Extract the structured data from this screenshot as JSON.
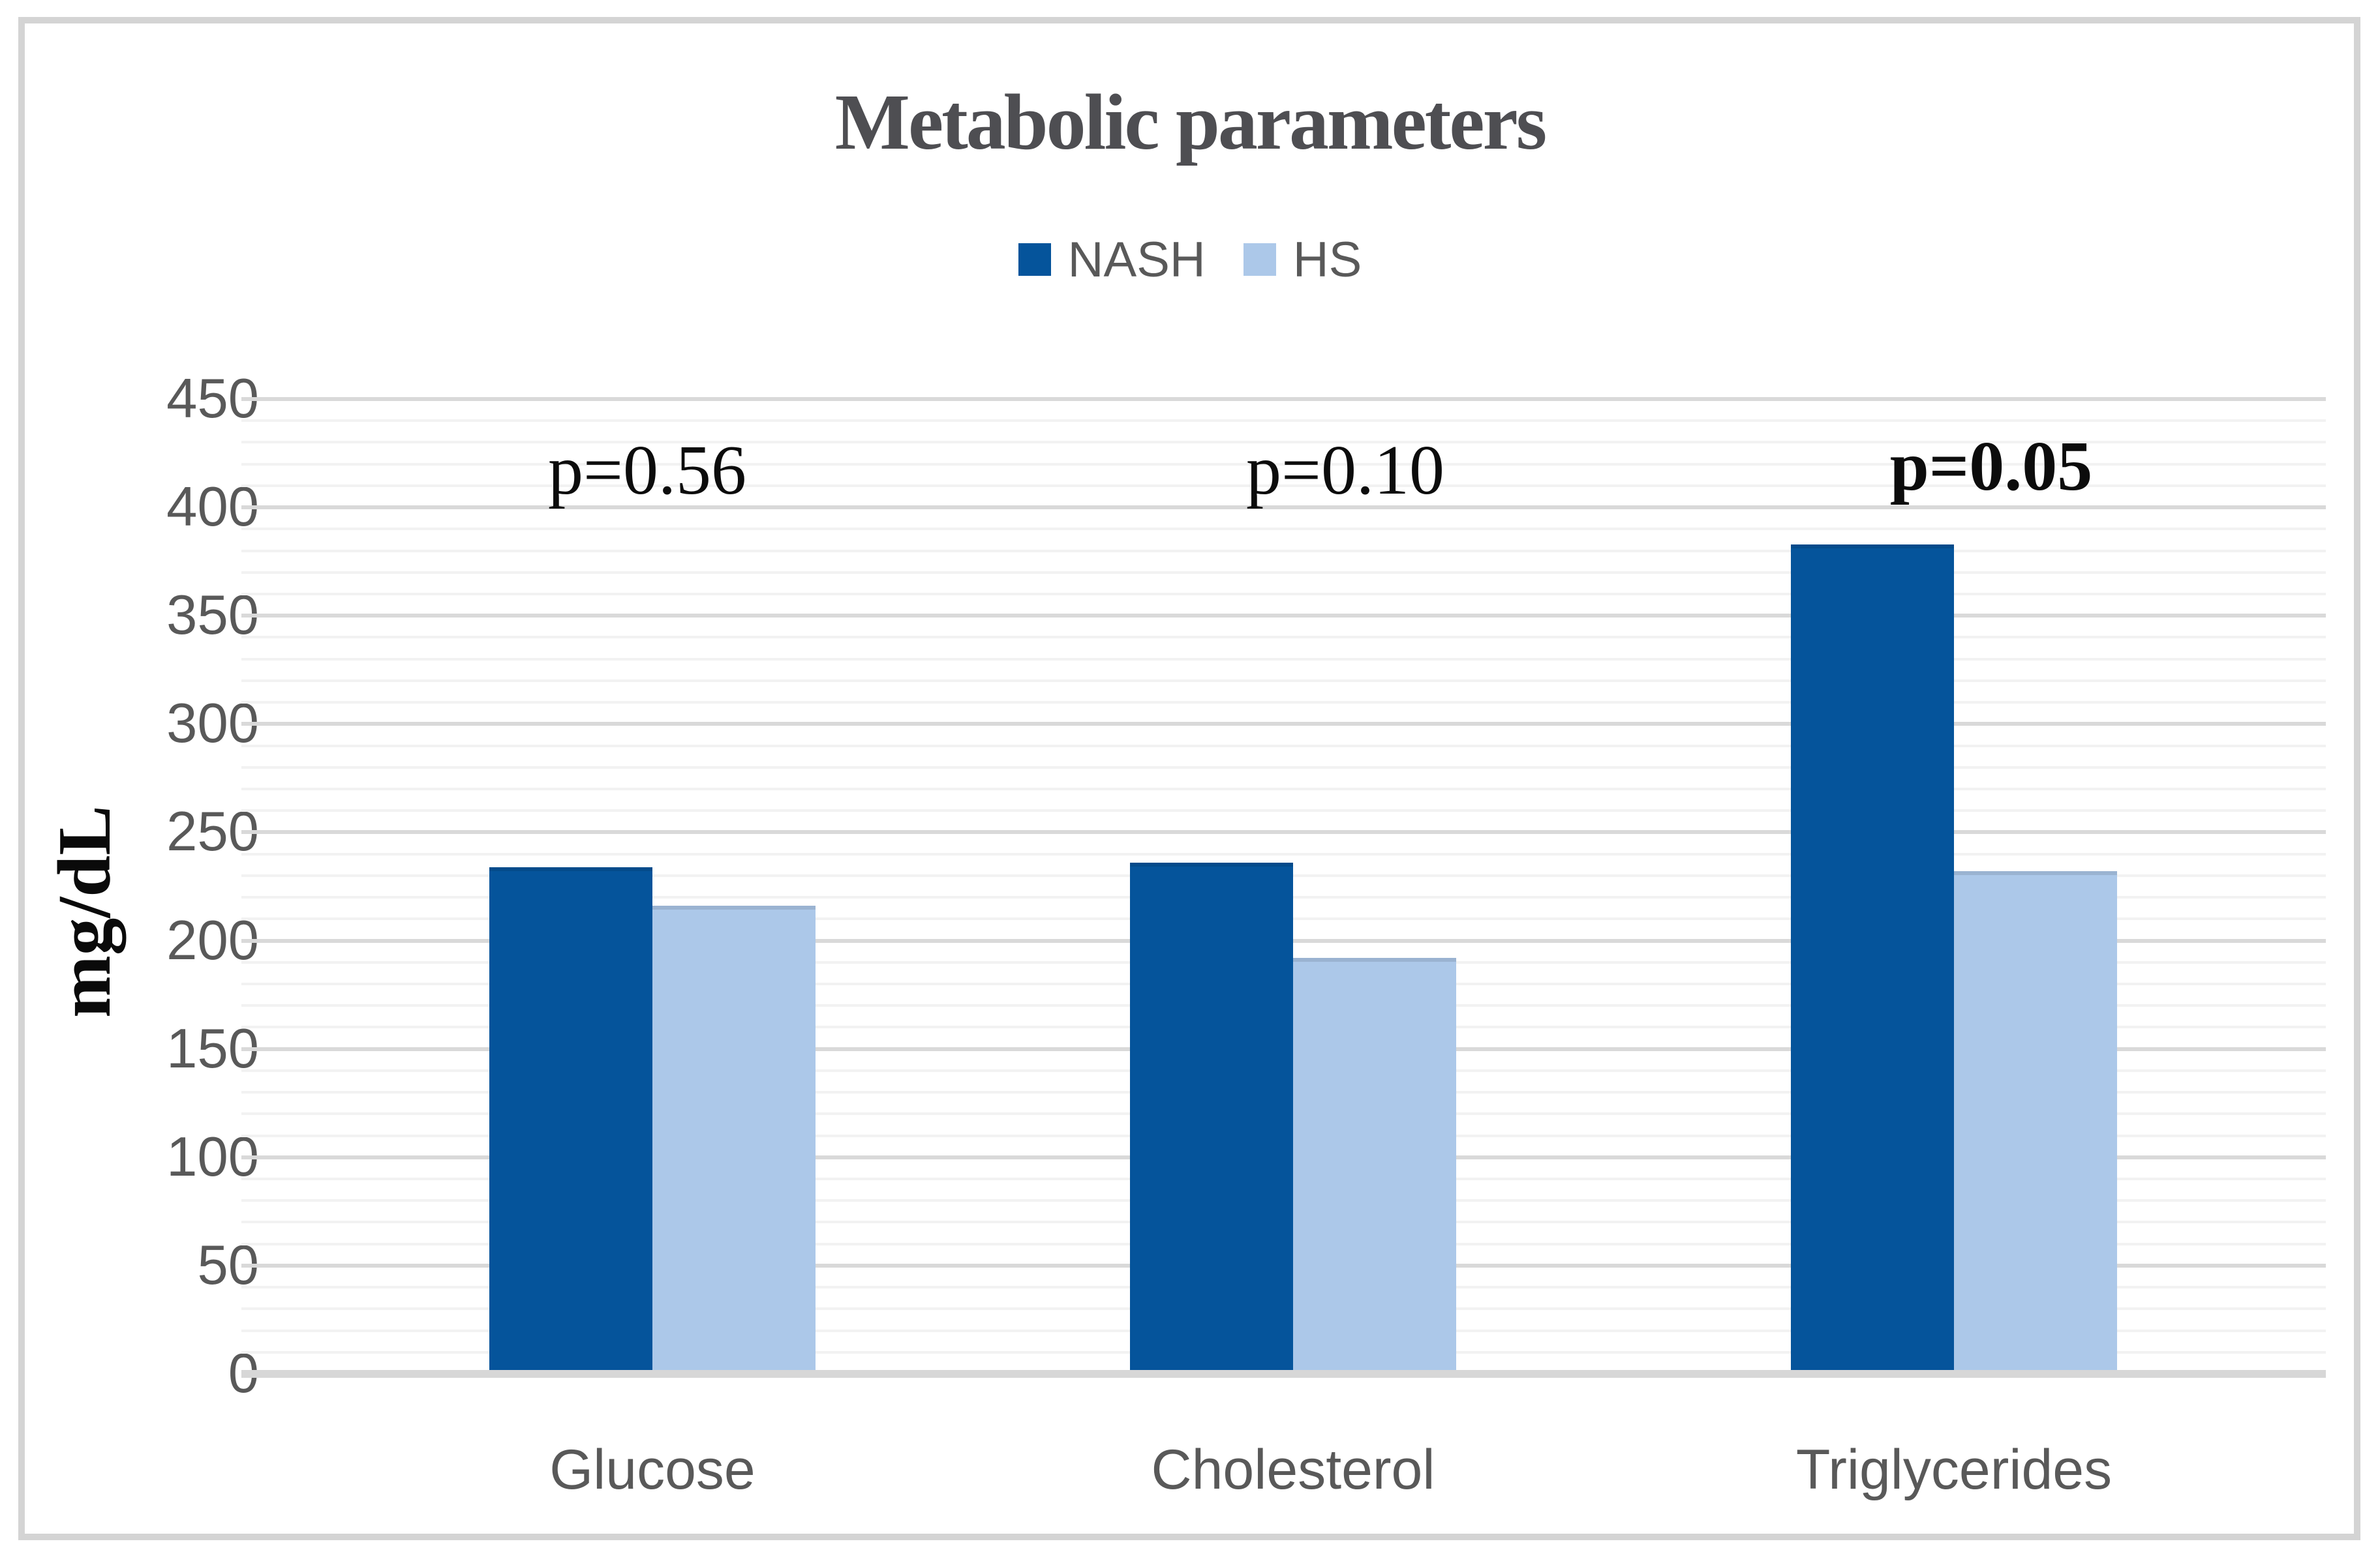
{
  "figure": {
    "title": "Metabolic parameters",
    "title_color": "#4E4E52",
    "border_color": "#D4D4D4",
    "background": "#FFFFFF"
  },
  "legend": {
    "items": [
      {
        "label": "NASH",
        "color": "#05549B"
      },
      {
        "label": "HS",
        "color": "#ACC8E9"
      }
    ],
    "text_color": "#595959",
    "position": "top"
  },
  "chart_data": {
    "type": "bar",
    "title": "Metabolic parameters",
    "xlabel": "",
    "ylabel": "mg/dL",
    "categories": [
      "Glucose",
      "Cholesterol",
      "Triglycerides"
    ],
    "series": [
      {
        "name": "NASH",
        "color": "#05549B",
        "values": [
          234,
          236,
          383
        ]
      },
      {
        "name": "HS",
        "color": "#ACC8E9",
        "values": [
          216,
          192,
          232
        ]
      }
    ],
    "annotations": [
      {
        "text": "p=0.56",
        "bold": false
      },
      {
        "text": "p=0.10",
        "bold": false
      },
      {
        "text": "p=0.05",
        "bold": true
      }
    ],
    "ylim": [
      0,
      450
    ],
    "yticks": [
      0,
      50,
      100,
      150,
      200,
      250,
      300,
      350,
      400,
      450
    ],
    "ytick_step": 50,
    "minor_grid_step": 10,
    "grid": true,
    "grid_major_color": "#D9D9D9",
    "grid_minor_color": "#F2F2F2",
    "axis_line_color": "#D7D7D7",
    "axis_text_color": "#595959",
    "legend_position": "top"
  }
}
